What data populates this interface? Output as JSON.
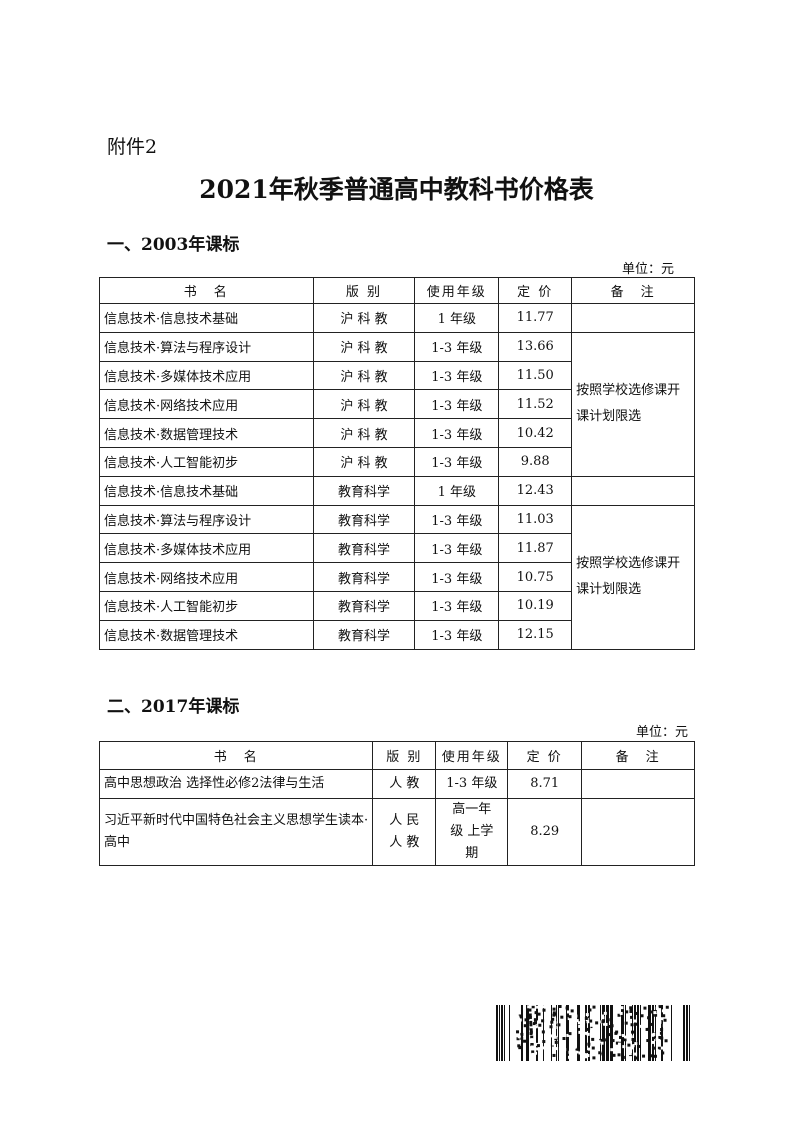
{
  "attachment": "附件2",
  "title": "2021年秋季普通高中教科书价格表",
  "section1": {
    "heading": "一、2003年课标",
    "unit": "单位：元",
    "headers": [
      "书　名",
      "版 别",
      "使用年级",
      "定 价",
      "备　注"
    ],
    "rows": [
      [
        "信息技术·信息技术基础",
        "沪 科 教",
        "1 年级",
        "11.77"
      ],
      [
        "信息技术·算法与程序设计",
        "沪 科 教",
        "1-3 年级",
        "13.66"
      ],
      [
        "信息技术·多媒体技术应用",
        "沪 科 教",
        "1-3 年级",
        "11.50"
      ],
      [
        "信息技术·网络技术应用",
        "沪 科 教",
        "1-3 年级",
        "11.52"
      ],
      [
        "信息技术·数据管理技术",
        "沪 科 教",
        "1-3 年级",
        "10.42"
      ],
      [
        "信息技术·人工智能初步",
        "沪 科 教",
        "1-3 年级",
        "9.88"
      ],
      [
        "信息技术·信息技术基础",
        "教育科学",
        "1 年级",
        "12.43"
      ],
      [
        "信息技术·算法与程序设计",
        "教育科学",
        "1-3 年级",
        "11.03"
      ],
      [
        "信息技术·多媒体技术应用",
        "教育科学",
        "1-3 年级",
        "11.87"
      ],
      [
        "信息技术·网络技术应用",
        "教育科学",
        "1-3 年级",
        "10.75"
      ],
      [
        "信息技术·人工智能初步",
        "教育科学",
        "1-3 年级",
        "10.19"
      ],
      [
        "信息技术·数据管理技术",
        "教育科学",
        "1-3 年级",
        "12.15"
      ]
    ],
    "note_a": "按照学校选修课开课计划限选",
    "note_b": "按照学校选修课开课计划限选"
  },
  "section2": {
    "heading": "二、2017年课标",
    "unit": "单位：元",
    "headers": [
      "书　名",
      "版 别",
      "使用年级",
      "定 价",
      "备　注"
    ],
    "rows": [
      [
        "高中思想政治 选择性必修2法律与生活",
        "人 教",
        "1-3 年级",
        "8.71",
        ""
      ],
      [
        "习近平新时代中国特色社会主义思想学生读本· 高中",
        "人 民 人 教",
        "高一年级 上学期",
        "8.29",
        ""
      ]
    ]
  }
}
